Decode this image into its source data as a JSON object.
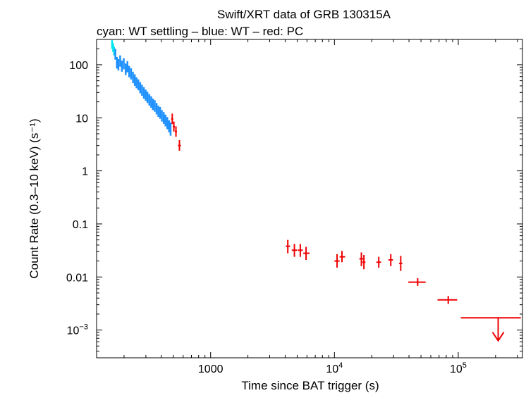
{
  "chart_data": {
    "type": "scatter",
    "title": "Swift/XRT data of GRB 130315A",
    "subtitle": "cyan: WT settling – blue: WT – red: PC",
    "xlabel": "Time since BAT trigger (s)",
    "ylabel": "Count Rate (0.3–10 keV) (s⁻¹)",
    "x_scale": "log",
    "y_scale": "log",
    "xlim": [
      120,
      330000
    ],
    "ylim": [
      0.0003,
      300
    ],
    "x_ticks": [
      {
        "value": 1000,
        "label": "1000",
        "exp": ""
      },
      {
        "value": 10000,
        "label": "10",
        "exp": "4"
      },
      {
        "value": 100000,
        "label": "10",
        "exp": "5"
      }
    ],
    "y_ticks": [
      {
        "value": 100,
        "label": "100",
        "exp": ""
      },
      {
        "value": 10,
        "label": "10",
        "exp": ""
      },
      {
        "value": 1,
        "label": "1",
        "exp": ""
      },
      {
        "value": 0.1,
        "label": "0.1",
        "exp": ""
      },
      {
        "value": 0.01,
        "label": "0.01",
        "exp": ""
      },
      {
        "value": 0.001,
        "label": "10",
        "exp": "−3"
      }
    ],
    "colors": {
      "wt_settling": "#00e5ee",
      "wt": "#1e90ff",
      "pc": "#ee0000"
    },
    "series": [
      {
        "name": "WT settling",
        "color_key": "wt_settling",
        "points": [
          {
            "x": 160,
            "y": 250,
            "ylo": 200,
            "yhi": 290
          },
          {
            "x": 163,
            "y": 215,
            "ylo": 175,
            "yhi": 255
          },
          {
            "x": 166,
            "y": 185,
            "ylo": 150,
            "yhi": 220
          }
        ]
      },
      {
        "name": "WT",
        "color_key": "wt",
        "points": [
          {
            "x": 170,
            "y": 160,
            "ylo": 125,
            "yhi": 200
          },
          {
            "x": 175,
            "y": 110,
            "ylo": 85,
            "yhi": 140
          },
          {
            "x": 180,
            "y": 100,
            "ylo": 78,
            "yhi": 128
          },
          {
            "x": 186,
            "y": 118,
            "ylo": 92,
            "yhi": 150
          },
          {
            "x": 192,
            "y": 95,
            "ylo": 74,
            "yhi": 120
          },
          {
            "x": 199,
            "y": 105,
            "ylo": 82,
            "yhi": 133
          },
          {
            "x": 206,
            "y": 82,
            "ylo": 64,
            "yhi": 105
          },
          {
            "x": 213,
            "y": 92,
            "ylo": 72,
            "yhi": 117
          },
          {
            "x": 220,
            "y": 75,
            "ylo": 58,
            "yhi": 95
          },
          {
            "x": 228,
            "y": 68,
            "ylo": 53,
            "yhi": 86
          },
          {
            "x": 236,
            "y": 58,
            "ylo": 45,
            "yhi": 74
          },
          {
            "x": 244,
            "y": 52,
            "ylo": 40,
            "yhi": 66
          },
          {
            "x": 252,
            "y": 46,
            "ylo": 36,
            "yhi": 58
          },
          {
            "x": 261,
            "y": 42,
            "ylo": 33,
            "yhi": 53
          },
          {
            "x": 270,
            "y": 37,
            "ylo": 29,
            "yhi": 47
          },
          {
            "x": 279,
            "y": 33,
            "ylo": 26,
            "yhi": 42
          },
          {
            "x": 289,
            "y": 30,
            "ylo": 23,
            "yhi": 38
          },
          {
            "x": 299,
            "y": 27,
            "ylo": 21,
            "yhi": 34
          },
          {
            "x": 309,
            "y": 24,
            "ylo": 19,
            "yhi": 31
          },
          {
            "x": 320,
            "y": 22,
            "ylo": 17,
            "yhi": 28
          },
          {
            "x": 331,
            "y": 20,
            "ylo": 15.5,
            "yhi": 25.5
          },
          {
            "x": 342,
            "y": 18,
            "ylo": 14,
            "yhi": 23
          },
          {
            "x": 354,
            "y": 17,
            "ylo": 13,
            "yhi": 21.5
          },
          {
            "x": 366,
            "y": 15,
            "ylo": 11.6,
            "yhi": 19
          },
          {
            "x": 378,
            "y": 13.5,
            "ylo": 10.4,
            "yhi": 17
          },
          {
            "x": 391,
            "y": 12.5,
            "ylo": 9.6,
            "yhi": 16
          },
          {
            "x": 404,
            "y": 11,
            "ylo": 8.5,
            "yhi": 14
          },
          {
            "x": 418,
            "y": 10,
            "ylo": 7.7,
            "yhi": 12.8
          },
          {
            "x": 432,
            "y": 9,
            "ylo": 6.9,
            "yhi": 11.5
          },
          {
            "x": 447,
            "y": 8,
            "ylo": 6.1,
            "yhi": 10.3
          },
          {
            "x": 462,
            "y": 7,
            "ylo": 5.3,
            "yhi": 9
          },
          {
            "x": 475,
            "y": 6.2,
            "ylo": 4.6,
            "yhi": 8.2
          }
        ]
      },
      {
        "name": "PC",
        "color_key": "pc",
        "points": [
          {
            "x": 490,
            "y": 9.5,
            "xlo": 480,
            "xhi": 500,
            "ylo": 7.6,
            "yhi": 12.0
          },
          {
            "x": 505,
            "y": 6.8,
            "xlo": 495,
            "xhi": 515,
            "ylo": 5.5,
            "yhi": 8.5
          },
          {
            "x": 525,
            "y": 5.5,
            "xlo": 515,
            "xhi": 535,
            "ylo": 4.4,
            "yhi": 6.9
          },
          {
            "x": 560,
            "y": 3.0,
            "xlo": 545,
            "xhi": 575,
            "ylo": 2.4,
            "yhi": 3.8
          },
          {
            "x": 4200,
            "y": 0.038,
            "xlo": 4050,
            "xhi": 4380,
            "ylo": 0.028,
            "yhi": 0.05
          },
          {
            "x": 4750,
            "y": 0.032,
            "xlo": 4520,
            "xhi": 4980,
            "ylo": 0.024,
            "yhi": 0.042
          },
          {
            "x": 5300,
            "y": 0.032,
            "xlo": 5050,
            "xhi": 5550,
            "ylo": 0.024,
            "yhi": 0.042
          },
          {
            "x": 5900,
            "y": 0.028,
            "xlo": 5600,
            "xhi": 6300,
            "ylo": 0.021,
            "yhi": 0.037
          },
          {
            "x": 10500,
            "y": 0.02,
            "xlo": 10000,
            "xhi": 11000,
            "ylo": 0.015,
            "yhi": 0.027
          },
          {
            "x": 11500,
            "y": 0.024,
            "xlo": 11000,
            "xhi": 12200,
            "ylo": 0.019,
            "yhi": 0.031
          },
          {
            "x": 16500,
            "y": 0.022,
            "xlo": 15900,
            "xhi": 17100,
            "ylo": 0.016,
            "yhi": 0.029
          },
          {
            "x": 17300,
            "y": 0.019,
            "xlo": 16800,
            "xhi": 17800,
            "ylo": 0.014,
            "yhi": 0.026
          },
          {
            "x": 22800,
            "y": 0.019,
            "xlo": 21800,
            "xhi": 23800,
            "ylo": 0.015,
            "yhi": 0.024
          },
          {
            "x": 28500,
            "y": 0.021,
            "xlo": 27300,
            "xhi": 29700,
            "ylo": 0.016,
            "yhi": 0.027
          },
          {
            "x": 34300,
            "y": 0.018,
            "xlo": 33300,
            "xhi": 35300,
            "ylo": 0.013,
            "yhi": 0.025
          },
          {
            "x": 47000,
            "y": 0.008,
            "xlo": 39500,
            "xhi": 54500,
            "ylo": 0.0068,
            "yhi": 0.0095
          },
          {
            "x": 83000,
            "y": 0.0037,
            "xlo": 68000,
            "xhi": 98000,
            "ylo": 0.0031,
            "yhi": 0.0044
          }
        ],
        "upper_limits": [
          {
            "x": 210000,
            "y": 0.0017,
            "xlo": 105000,
            "xhi": 320000,
            "arrow_to": 0.00063
          }
        ]
      }
    ]
  }
}
